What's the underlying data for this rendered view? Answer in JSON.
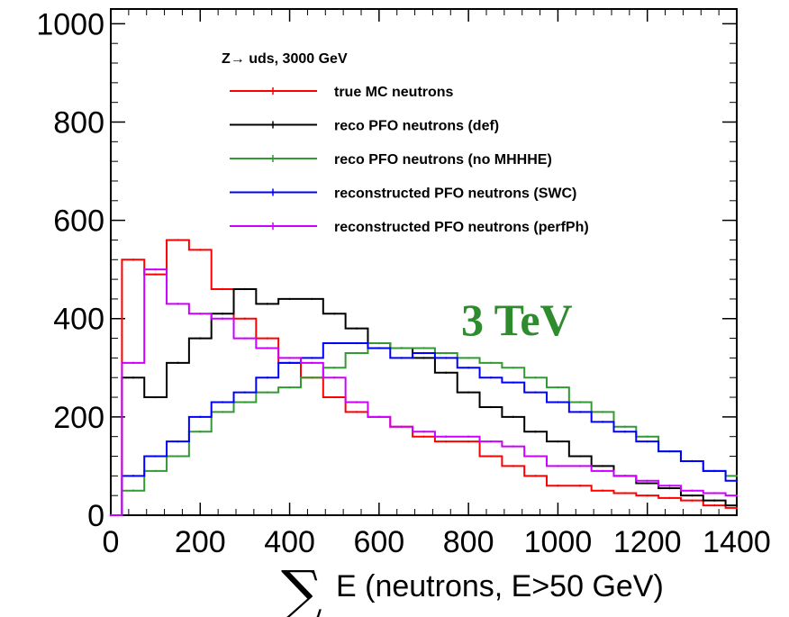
{
  "chart_data": {
    "type": "line",
    "title": "",
    "xlabel_symbol": "∑",
    "xlabel": "E (neutrons, E>50 GeV)",
    "ylabel": "",
    "xlim": [
      0,
      1400
    ],
    "ylim": [
      0,
      1030
    ],
    "x_ticks": [
      0,
      200,
      400,
      600,
      800,
      1000,
      1200,
      1400
    ],
    "x_tick_labels": [
      "0",
      "200",
      "400",
      "600",
      "800",
      "1000",
      "1200",
      "1400"
    ],
    "y_ticks": [
      0,
      200,
      400,
      600,
      800,
      1000
    ],
    "y_tick_labels": [
      "0",
      "200",
      "400",
      "600",
      "800",
      "1000"
    ],
    "legend_title": "Z→ uds, 3000 GeV",
    "legend_position": "top-right",
    "annotation": {
      "text": "3 TeV",
      "color": "#2e8b2e"
    },
    "x": [
      0,
      50,
      100,
      150,
      200,
      250,
      300,
      350,
      400,
      450,
      500,
      550,
      600,
      650,
      700,
      750,
      800,
      850,
      900,
      950,
      1000,
      1050,
      1100,
      1150,
      1200,
      1250,
      1300,
      1350,
      1400
    ],
    "series": [
      {
        "name": "true MC  neutrons",
        "color": "#ff0000",
        "values": [
          0,
          520,
          490,
          560,
          540,
          460,
          400,
          360,
          310,
          280,
          240,
          210,
          200,
          180,
          160,
          150,
          150,
          120,
          100,
          80,
          60,
          60,
          50,
          45,
          40,
          35,
          30,
          20,
          15
        ]
      },
      {
        "name": "reco PFO  neutrons (def)",
        "color": "#000000",
        "values": [
          0,
          280,
          240,
          310,
          360,
          410,
          460,
          430,
          440,
          440,
          410,
          380,
          350,
          340,
          320,
          290,
          250,
          220,
          200,
          170,
          150,
          120,
          100,
          80,
          65,
          55,
          40,
          30,
          20
        ]
      },
      {
        "name": "reco PFO  neutrons (no MHHHE)",
        "color": "#339933",
        "values": [
          0,
          50,
          90,
          120,
          170,
          210,
          230,
          250,
          260,
          280,
          300,
          330,
          350,
          340,
          340,
          330,
          320,
          310,
          300,
          280,
          260,
          230,
          210,
          180,
          160,
          130,
          110,
          90,
          80
        ]
      },
      {
        "name": "reconstructed PFO  neutrons (SWC)",
        "color": "#0000ff",
        "values": [
          0,
          80,
          120,
          150,
          200,
          230,
          250,
          280,
          310,
          320,
          350,
          350,
          340,
          320,
          330,
          320,
          300,
          280,
          270,
          250,
          230,
          210,
          190,
          170,
          150,
          130,
          110,
          90,
          70
        ]
      },
      {
        "name": "reconstructed PFO  neutrons (perfPh)",
        "color": "#cc00ff",
        "values": [
          0,
          310,
          500,
          430,
          410,
          400,
          360,
          340,
          320,
          310,
          280,
          230,
          200,
          180,
          170,
          160,
          160,
          150,
          140,
          120,
          100,
          100,
          90,
          80,
          70,
          60,
          50,
          45,
          40
        ]
      }
    ]
  }
}
